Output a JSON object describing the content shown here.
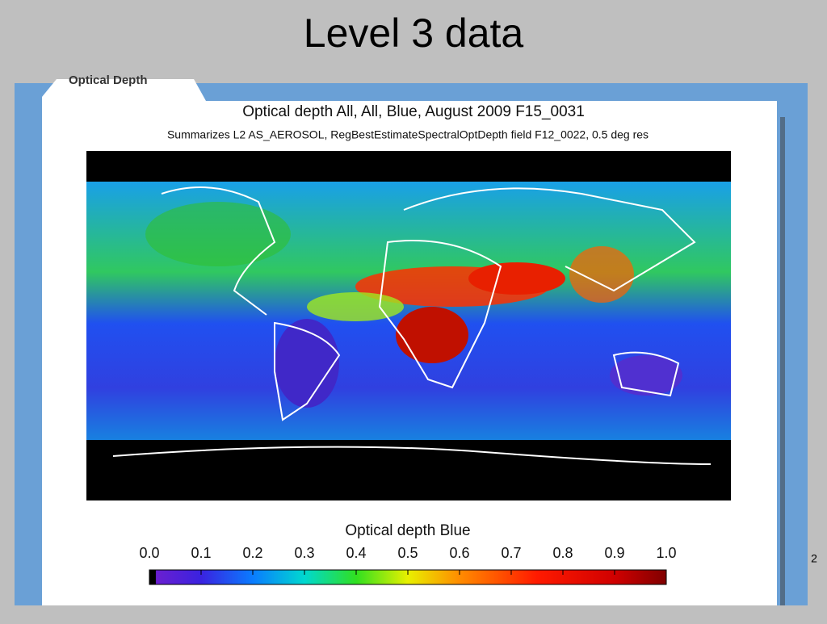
{
  "slide": {
    "title": "Level 3 data",
    "page_number": "2"
  },
  "figure": {
    "tab_label": "Optical Depth",
    "title": "Optical depth All, All, Blue, August 2009 F15_0031",
    "subtitle": "Summarizes L2 AS_AEROSOL, RegBestEstimateSpectralOptDepth field F12_0022, 0.5 deg res",
    "colorbar": {
      "label": "Optical depth Blue",
      "lim": [
        0,
        1
      ],
      "ticks": [
        {
          "value": 0,
          "label": "0.0"
        },
        0.1,
        0.2,
        0.3,
        0.4,
        0.5,
        0.6,
        0.7,
        0.8,
        0.9,
        {
          "value": 1,
          "label": "1.0"
        }
      ]
    }
  }
}
